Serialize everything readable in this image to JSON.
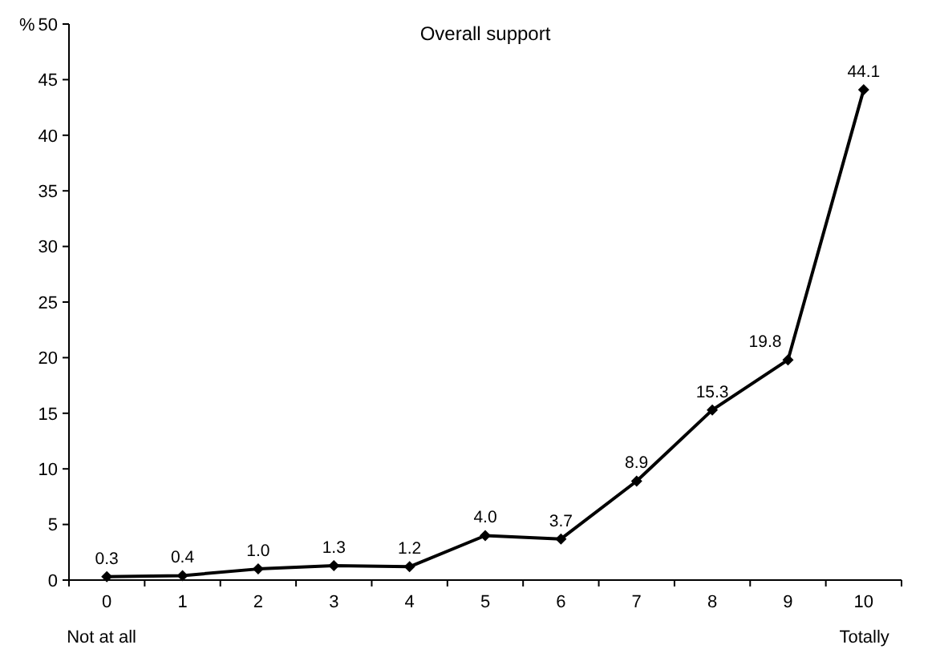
{
  "chart_data": {
    "type": "line",
    "title": "Overall support",
    "ylabel": "%",
    "categories": [
      "0",
      "1",
      "2",
      "3",
      "4",
      "5",
      "6",
      "7",
      "8",
      "9",
      "10"
    ],
    "series": [
      {
        "color": "#000000",
        "values": [
          0.3,
          0.4,
          1.0,
          1.3,
          1.2,
          4.0,
          3.7,
          8.9,
          15.3,
          19.8,
          44.1
        ]
      }
    ],
    "value_labels": [
      "0.3",
      "0.4",
      "1.0",
      "1.3",
      "1.2",
      "4.0",
      "3.7",
      "8.9",
      "15.3",
      "19.8",
      "44.1"
    ],
    "ylim": [
      0,
      50
    ],
    "yticks": [
      0,
      5,
      10,
      15,
      20,
      25,
      30,
      35,
      40,
      45,
      50
    ],
    "annotations": [
      "Not at all",
      "Totally"
    ],
    "grid": false,
    "marker": "diamond",
    "line_style": "solid"
  }
}
